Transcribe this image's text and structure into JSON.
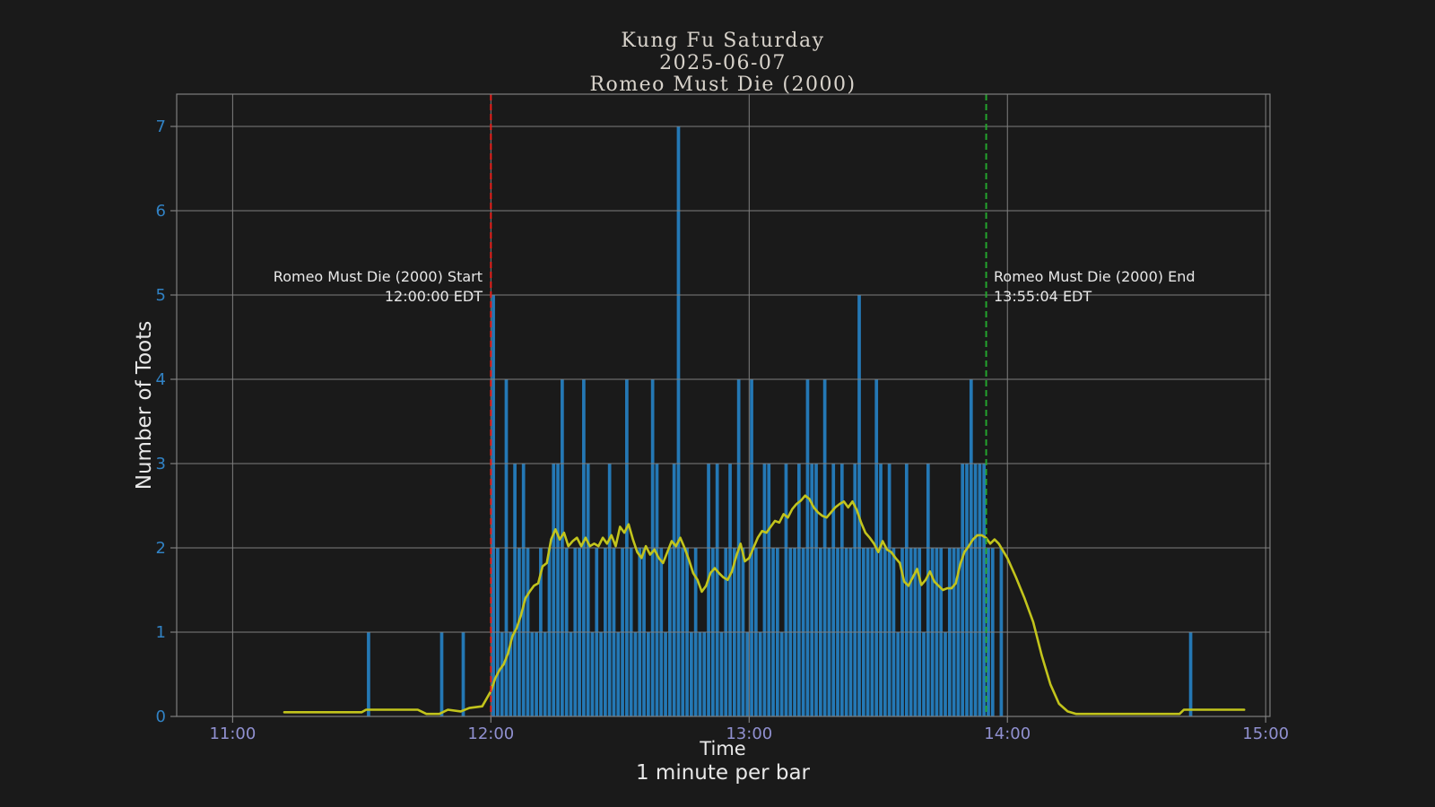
{
  "colors": {
    "background": "#1a1a1a",
    "bar": "#2478b5",
    "avg_line": "#c2c41c",
    "start_line": "#e8201c",
    "end_line": "#23a32d",
    "grid": "#7f7f7f",
    "y_tick": "#3182c4",
    "x_tick": "#9090d0",
    "text": "#e8e8e8",
    "title": "#d8d3cb"
  },
  "title": {
    "line1": "Kung Fu Saturday",
    "line2": "2025-06-07",
    "line3": "Romeo Must Die (2000)"
  },
  "chart_data": {
    "type": "bar",
    "title": "Kung Fu Saturday / 2025-06-07 / Romeo Must Die (2000)",
    "xlabel": "Time",
    "xlabel_sub": "1 minute per bar",
    "ylabel": "Number of Toots",
    "grid": true,
    "legend": "none",
    "x_tick_labels": [
      "11:00",
      "12:00",
      "13:00",
      "14:00",
      "15:00"
    ],
    "y_tick_values": [
      0,
      1,
      2,
      3,
      4,
      5,
      6,
      7
    ],
    "x_range": [
      "10:47",
      "15:01"
    ],
    "ylim": [
      0,
      7.383
    ],
    "bar_series_name": "Toots per minute",
    "bars": [
      [
        "11:31",
        1
      ],
      [
        "11:48",
        1
      ],
      [
        "11:53",
        1
      ],
      [
        "12:00",
        5
      ],
      [
        "12:01",
        2
      ],
      [
        "12:02",
        1
      ],
      [
        "12:03",
        4
      ],
      [
        "12:04",
        1
      ],
      [
        "12:05",
        3
      ],
      [
        "12:06",
        2
      ],
      [
        "12:07",
        3
      ],
      [
        "12:08",
        2
      ],
      [
        "12:09",
        1
      ],
      [
        "12:10",
        1
      ],
      [
        "12:11",
        2
      ],
      [
        "12:12",
        1
      ],
      [
        "12:13",
        2
      ],
      [
        "12:14",
        3
      ],
      [
        "12:15",
        3
      ],
      [
        "12:16",
        4
      ],
      [
        "12:17",
        2
      ],
      [
        "12:18",
        1
      ],
      [
        "12:19",
        2
      ],
      [
        "12:20",
        2
      ],
      [
        "12:21",
        4
      ],
      [
        "12:22",
        3
      ],
      [
        "12:23",
        1
      ],
      [
        "12:24",
        2
      ],
      [
        "12:25",
        1
      ],
      [
        "12:26",
        2
      ],
      [
        "12:27",
        3
      ],
      [
        "12:28",
        2
      ],
      [
        "12:29",
        1
      ],
      [
        "12:30",
        2
      ],
      [
        "12:31",
        4
      ],
      [
        "12:32",
        2
      ],
      [
        "12:33",
        1
      ],
      [
        "12:34",
        2
      ],
      [
        "12:35",
        2
      ],
      [
        "12:36",
        1
      ],
      [
        "12:37",
        4
      ],
      [
        "12:38",
        3
      ],
      [
        "12:39",
        2
      ],
      [
        "12:40",
        1
      ],
      [
        "12:41",
        2
      ],
      [
        "12:42",
        3
      ],
      [
        "12:43",
        7
      ],
      [
        "12:44",
        2
      ],
      [
        "12:45",
        2
      ],
      [
        "12:46",
        1
      ],
      [
        "12:47",
        2
      ],
      [
        "12:48",
        1
      ],
      [
        "12:49",
        1
      ],
      [
        "12:50",
        3
      ],
      [
        "12:51",
        2
      ],
      [
        "12:52",
        3
      ],
      [
        "12:53",
        1
      ],
      [
        "12:54",
        2
      ],
      [
        "12:55",
        3
      ],
      [
        "12:56",
        2
      ],
      [
        "12:57",
        4
      ],
      [
        "12:58",
        2
      ],
      [
        "12:59",
        1
      ],
      [
        "13:00",
        4
      ],
      [
        "13:01",
        2
      ],
      [
        "13:02",
        1
      ],
      [
        "13:03",
        3
      ],
      [
        "13:04",
        3
      ],
      [
        "13:05",
        2
      ],
      [
        "13:06",
        2
      ],
      [
        "13:07",
        1
      ],
      [
        "13:08",
        3
      ],
      [
        "13:09",
        2
      ],
      [
        "13:10",
        2
      ],
      [
        "13:11",
        3
      ],
      [
        "13:12",
        2
      ],
      [
        "13:13",
        4
      ],
      [
        "13:14",
        3
      ],
      [
        "13:15",
        3
      ],
      [
        "13:16",
        2
      ],
      [
        "13:17",
        4
      ],
      [
        "13:18",
        2
      ],
      [
        "13:19",
        3
      ],
      [
        "13:20",
        2
      ],
      [
        "13:21",
        3
      ],
      [
        "13:22",
        2
      ],
      [
        "13:23",
        2
      ],
      [
        "13:24",
        3
      ],
      [
        "13:25",
        5
      ],
      [
        "13:26",
        2
      ],
      [
        "13:27",
        2
      ],
      [
        "13:28",
        2
      ],
      [
        "13:29",
        4
      ],
      [
        "13:30",
        3
      ],
      [
        "13:31",
        2
      ],
      [
        "13:32",
        3
      ],
      [
        "13:33",
        2
      ],
      [
        "13:34",
        1
      ],
      [
        "13:35",
        2
      ],
      [
        "13:36",
        3
      ],
      [
        "13:37",
        2
      ],
      [
        "13:38",
        2
      ],
      [
        "13:39",
        2
      ],
      [
        "13:40",
        1
      ],
      [
        "13:41",
        3
      ],
      [
        "13:42",
        2
      ],
      [
        "13:43",
        2
      ],
      [
        "13:44",
        2
      ],
      [
        "13:45",
        1
      ],
      [
        "13:46",
        2
      ],
      [
        "13:47",
        2
      ],
      [
        "13:48",
        2
      ],
      [
        "13:49",
        3
      ],
      [
        "13:50",
        3
      ],
      [
        "13:51",
        4
      ],
      [
        "13:52",
        3
      ],
      [
        "13:53",
        3
      ],
      [
        "13:54",
        3
      ],
      [
        "13:55",
        2
      ],
      [
        "13:56",
        2
      ],
      [
        "13:58",
        2
      ],
      [
        "14:42",
        1
      ]
    ],
    "avg_line": {
      "name": "rolling average",
      "points": [
        [
          "11:12",
          0.05
        ],
        [
          "11:20",
          0.05
        ],
        [
          "11:30",
          0.05
        ],
        [
          "11:31",
          0.08
        ],
        [
          "11:43",
          0.08
        ],
        [
          "11:45",
          0.03
        ],
        [
          "11:48",
          0.03
        ],
        [
          "11:50",
          0.08
        ],
        [
          "11:53",
          0.06
        ],
        [
          "11:55",
          0.1
        ],
        [
          "11:58",
          0.12
        ],
        [
          "12:00",
          0.3
        ],
        [
          "12:01",
          0.45
        ],
        [
          "12:02",
          0.55
        ],
        [
          "12:03",
          0.62
        ],
        [
          "12:04",
          0.75
        ],
        [
          "12:05",
          0.95
        ],
        [
          "12:06",
          1.05
        ],
        [
          "12:07",
          1.2
        ],
        [
          "12:08",
          1.4
        ],
        [
          "12:09",
          1.48
        ],
        [
          "12:10",
          1.55
        ],
        [
          "12:11",
          1.58
        ],
        [
          "12:12",
          1.78
        ],
        [
          "12:13",
          1.82
        ],
        [
          "12:14",
          2.1
        ],
        [
          "12:15",
          2.22
        ],
        [
          "12:16",
          2.1
        ],
        [
          "12:17",
          2.18
        ],
        [
          "12:18",
          2.02
        ],
        [
          "12:19",
          2.08
        ],
        [
          "12:20",
          2.12
        ],
        [
          "12:21",
          2.02
        ],
        [
          "12:22",
          2.12
        ],
        [
          "12:23",
          2.02
        ],
        [
          "12:24",
          2.05
        ],
        [
          "12:25",
          2.02
        ],
        [
          "12:26",
          2.12
        ],
        [
          "12:27",
          2.05
        ],
        [
          "12:28",
          2.15
        ],
        [
          "12:29",
          2.02
        ],
        [
          "12:30",
          2.25
        ],
        [
          "12:31",
          2.18
        ],
        [
          "12:32",
          2.28
        ],
        [
          "12:33",
          2.1
        ],
        [
          "12:34",
          1.95
        ],
        [
          "12:35",
          1.88
        ],
        [
          "12:36",
          2.02
        ],
        [
          "12:37",
          1.92
        ],
        [
          "12:38",
          1.98
        ],
        [
          "12:39",
          1.88
        ],
        [
          "12:40",
          1.82
        ],
        [
          "12:41",
          1.95
        ],
        [
          "12:42",
          2.08
        ],
        [
          "12:43",
          2.02
        ],
        [
          "12:44",
          2.12
        ],
        [
          "12:45",
          2.0
        ],
        [
          "12:46",
          1.86
        ],
        [
          "12:47",
          1.7
        ],
        [
          "12:48",
          1.62
        ],
        [
          "12:49",
          1.48
        ],
        [
          "12:50",
          1.55
        ],
        [
          "12:51",
          1.7
        ],
        [
          "12:52",
          1.76
        ],
        [
          "12:53",
          1.7
        ],
        [
          "12:54",
          1.65
        ],
        [
          "12:55",
          1.62
        ],
        [
          "12:56",
          1.72
        ],
        [
          "12:57",
          1.9
        ],
        [
          "12:58",
          2.05
        ],
        [
          "12:59",
          1.84
        ],
        [
          "13:00",
          1.88
        ],
        [
          "13:01",
          2.0
        ],
        [
          "13:02",
          2.12
        ],
        [
          "13:03",
          2.2
        ],
        [
          "13:04",
          2.18
        ],
        [
          "13:05",
          2.25
        ],
        [
          "13:06",
          2.32
        ],
        [
          "13:07",
          2.3
        ],
        [
          "13:08",
          2.4
        ],
        [
          "13:09",
          2.36
        ],
        [
          "13:10",
          2.46
        ],
        [
          "13:11",
          2.52
        ],
        [
          "13:12",
          2.56
        ],
        [
          "13:13",
          2.62
        ],
        [
          "13:14",
          2.58
        ],
        [
          "13:15",
          2.48
        ],
        [
          "13:16",
          2.42
        ],
        [
          "13:17",
          2.38
        ],
        [
          "13:18",
          2.36
        ],
        [
          "13:19",
          2.42
        ],
        [
          "13:20",
          2.48
        ],
        [
          "13:21",
          2.52
        ],
        [
          "13:22",
          2.55
        ],
        [
          "13:23",
          2.48
        ],
        [
          "13:24",
          2.55
        ],
        [
          "13:25",
          2.45
        ],
        [
          "13:26",
          2.3
        ],
        [
          "13:27",
          2.18
        ],
        [
          "13:28",
          2.12
        ],
        [
          "13:29",
          2.05
        ],
        [
          "13:30",
          1.95
        ],
        [
          "13:31",
          2.08
        ],
        [
          "13:32",
          1.98
        ],
        [
          "13:33",
          1.95
        ],
        [
          "13:34",
          1.88
        ],
        [
          "13:35",
          1.82
        ],
        [
          "13:36",
          1.6
        ],
        [
          "13:37",
          1.55
        ],
        [
          "13:38",
          1.65
        ],
        [
          "13:39",
          1.75
        ],
        [
          "13:40",
          1.56
        ],
        [
          "13:41",
          1.62
        ],
        [
          "13:42",
          1.72
        ],
        [
          "13:43",
          1.6
        ],
        [
          "13:44",
          1.55
        ],
        [
          "13:45",
          1.5
        ],
        [
          "13:46",
          1.52
        ],
        [
          "13:47",
          1.52
        ],
        [
          "13:48",
          1.58
        ],
        [
          "13:49",
          1.8
        ],
        [
          "13:50",
          1.95
        ],
        [
          "13:51",
          2.02
        ],
        [
          "13:52",
          2.1
        ],
        [
          "13:53",
          2.15
        ],
        [
          "13:54",
          2.15
        ],
        [
          "13:55",
          2.12
        ],
        [
          "13:56",
          2.05
        ],
        [
          "13:57",
          2.1
        ],
        [
          "13:58",
          2.05
        ],
        [
          "14:00",
          1.88
        ],
        [
          "14:02",
          1.65
        ],
        [
          "14:04",
          1.4
        ],
        [
          "14:06",
          1.12
        ],
        [
          "14:08",
          0.72
        ],
        [
          "14:10",
          0.38
        ],
        [
          "14:12",
          0.15
        ],
        [
          "14:14",
          0.06
        ],
        [
          "14:16",
          0.03
        ],
        [
          "14:25",
          0.03
        ],
        [
          "14:40",
          0.03
        ],
        [
          "14:41",
          0.08
        ],
        [
          "14:48",
          0.08
        ],
        [
          "14:55",
          0.08
        ]
      ]
    },
    "event_lines": [
      {
        "time": "12:00:00",
        "color_key": "start_line",
        "label_line1": "Romeo Must Die (2000) Start",
        "label_line2": "12:00:00 EDT",
        "align": "right"
      },
      {
        "time": "13:55:04",
        "color_key": "end_line",
        "label_line1": "Romeo Must Die (2000) End",
        "label_line2": "13:55:04 EDT",
        "align": "left"
      }
    ]
  }
}
